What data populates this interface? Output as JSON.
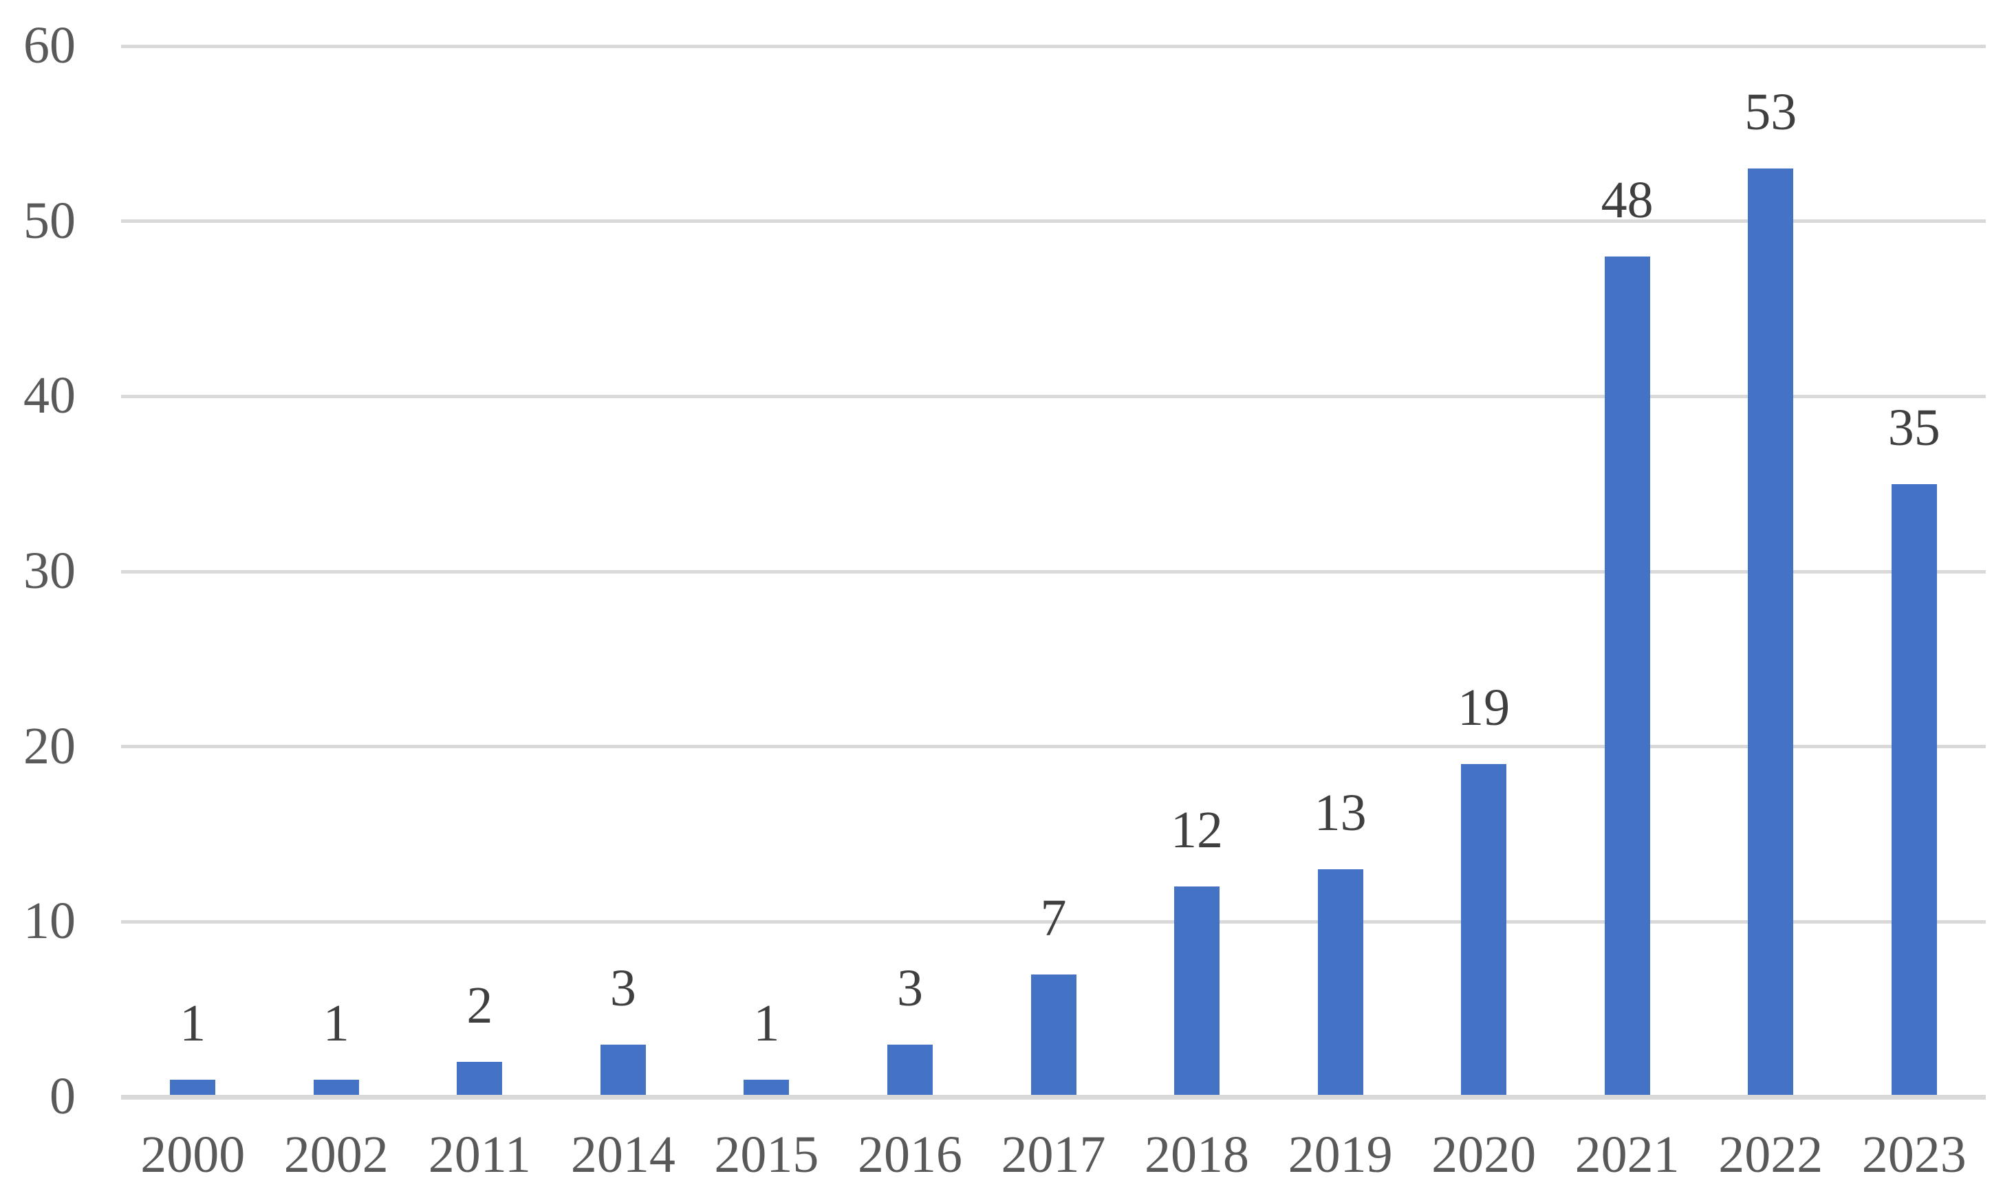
{
  "chart_data": {
    "type": "bar",
    "title": "",
    "xlabel": "",
    "ylabel": "",
    "categories": [
      "2000",
      "2002",
      "2011",
      "2014",
      "2015",
      "2016",
      "2017",
      "2018",
      "2019",
      "2020",
      "2021",
      "2022",
      "2023"
    ],
    "values": [
      1,
      1,
      2,
      3,
      1,
      3,
      7,
      12,
      13,
      19,
      48,
      53,
      35
    ],
    "data_labels": [
      "1",
      "1",
      "2",
      "3",
      "1",
      "3",
      "7",
      "12",
      "13",
      "19",
      "48",
      "53",
      "35"
    ],
    "yticks": [
      0,
      10,
      20,
      30,
      40,
      50,
      60
    ],
    "ytick_labels": [
      "0",
      "10",
      "20",
      "30",
      "40",
      "50",
      "60"
    ],
    "ylim": [
      0,
      60
    ],
    "grid": "horizontal",
    "legend": "none",
    "colors": {
      "bar": "#4472C4",
      "gridline": "#D9D9D9",
      "axis_line": "#D9D9D9",
      "axis_label": "#595959",
      "data_label": "#3F3F3F"
    }
  }
}
